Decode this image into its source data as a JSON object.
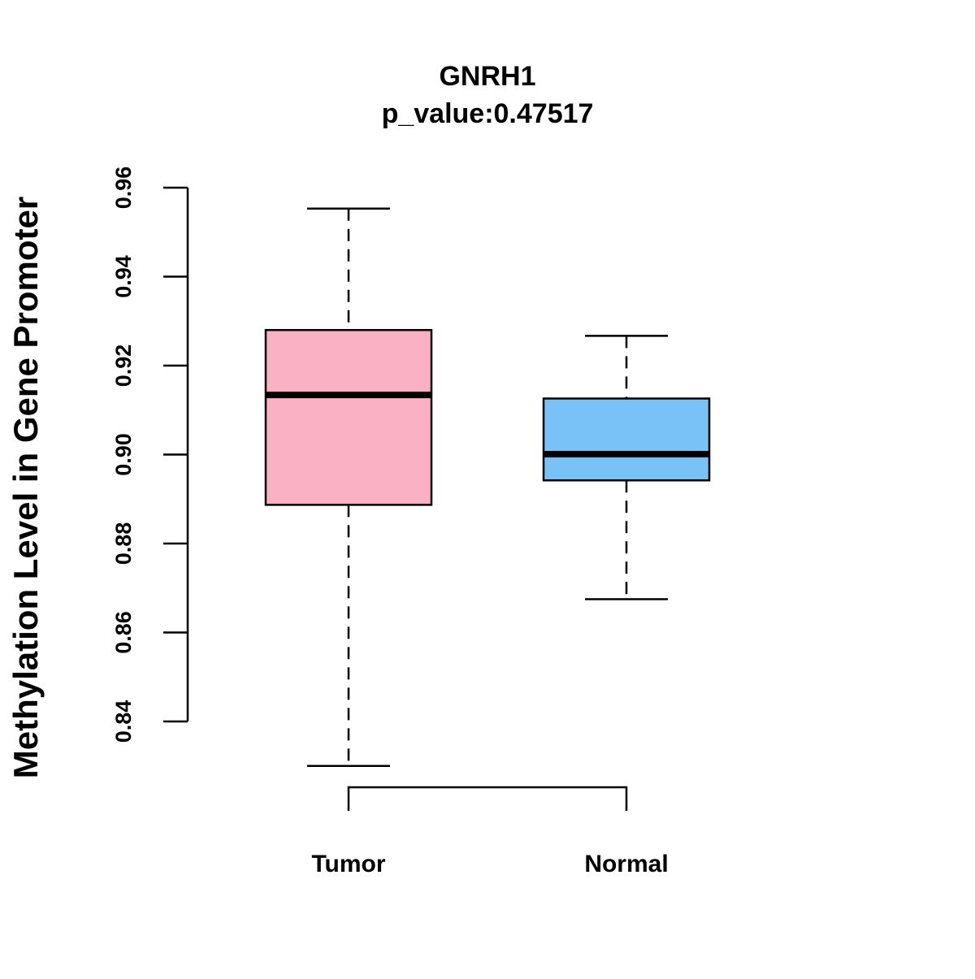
{
  "chart_data": {
    "type": "boxplot",
    "title": "GNRH1",
    "subtitle": "p_value:0.47517",
    "xlabel": "",
    "ylabel": "Methylation Level in Gene Promoter",
    "categories": [
      "Tumor",
      "Normal"
    ],
    "yticks": [
      "0.84",
      "0.86",
      "0.88",
      "0.90",
      "0.92",
      "0.94",
      "0.96"
    ],
    "ytick_values": [
      0.84,
      0.86,
      0.88,
      0.9,
      0.92,
      0.94,
      0.96
    ],
    "ylim": [
      0.84,
      0.96
    ],
    "grid": false,
    "boxes": [
      {
        "name": "Tumor",
        "min": 0.83,
        "q1": 0.8887,
        "median": 0.9134,
        "q3": 0.928,
        "max": 0.9553,
        "color": "#FBB1C4"
      },
      {
        "name": "Normal",
        "min": 0.8675,
        "q1": 0.8942,
        "median": 0.9001,
        "q3": 0.9126,
        "max": 0.9267,
        "color": "#79C2F8"
      }
    ],
    "bracket": [
      "Tumor",
      "Normal"
    ]
  }
}
